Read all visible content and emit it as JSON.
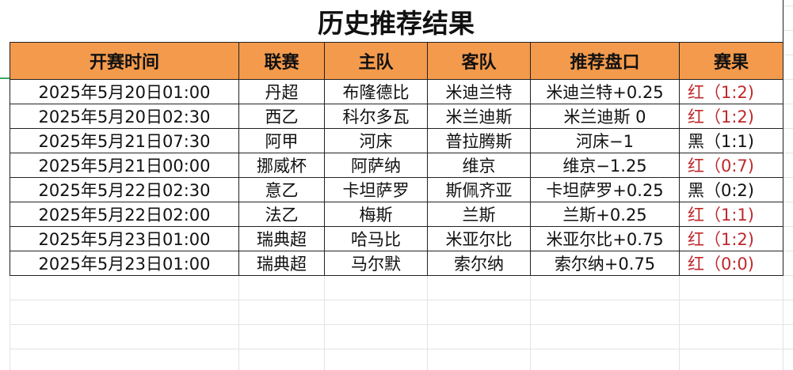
{
  "title": "历史推荐结果",
  "columns": [
    "开赛时间",
    "联赛",
    "主队",
    "客队",
    "推荐盘口",
    "赛果"
  ],
  "colors": {
    "header_bg": "#f39a4c",
    "win": "#c0282c",
    "loss": "#111111"
  },
  "rows": [
    {
      "time": "2025年5月20日01:00",
      "league": "丹超",
      "home": "布隆德比",
      "away": "米迪兰特",
      "pick": "米迪兰特+0.25",
      "result": "红（1:2)",
      "status": "red"
    },
    {
      "time": "2025年5月20日02:30",
      "league": "西乙",
      "home": "科尔多瓦",
      "away": "米兰迪斯",
      "pick": "米兰迪斯 0",
      "result": "红（1:2)",
      "status": "red"
    },
    {
      "time": "2025年5月21日07:30",
      "league": "阿甲",
      "home": "河床",
      "away": "普拉腾斯",
      "pick": "河床−1",
      "result": "黑（1:1)",
      "status": "black"
    },
    {
      "time": "2025年5月21日00:00",
      "league": "挪威杯",
      "home": "阿萨纳",
      "away": "维京",
      "pick": "维京−1.25",
      "result": "红（0:7)",
      "status": "red"
    },
    {
      "time": "2025年5月22日02:30",
      "league": "意乙",
      "home": "卡坦萨罗",
      "away": "斯佩齐亚",
      "pick": "卡坦萨罗+0.25",
      "result": "黑（0:2)",
      "status": "black"
    },
    {
      "time": "2025年5月22日02:00",
      "league": "法乙",
      "home": "梅斯",
      "away": "兰斯",
      "pick": "兰斯+0.25",
      "result": "红（1:1)",
      "status": "red"
    },
    {
      "time": "2025年5月23日01:00",
      "league": "瑞典超",
      "home": "哈马比",
      "away": "米亚尔比",
      "pick": "米亚尔比+0.75",
      "result": "红（1:2)",
      "status": "red"
    },
    {
      "time": "2025年5月23日01:00",
      "league": "瑞典超",
      "home": "马尔默",
      "away": "索尔纳",
      "pick": "索尔纳+0.75",
      "result": "红（0:0)",
      "status": "red"
    }
  ]
}
